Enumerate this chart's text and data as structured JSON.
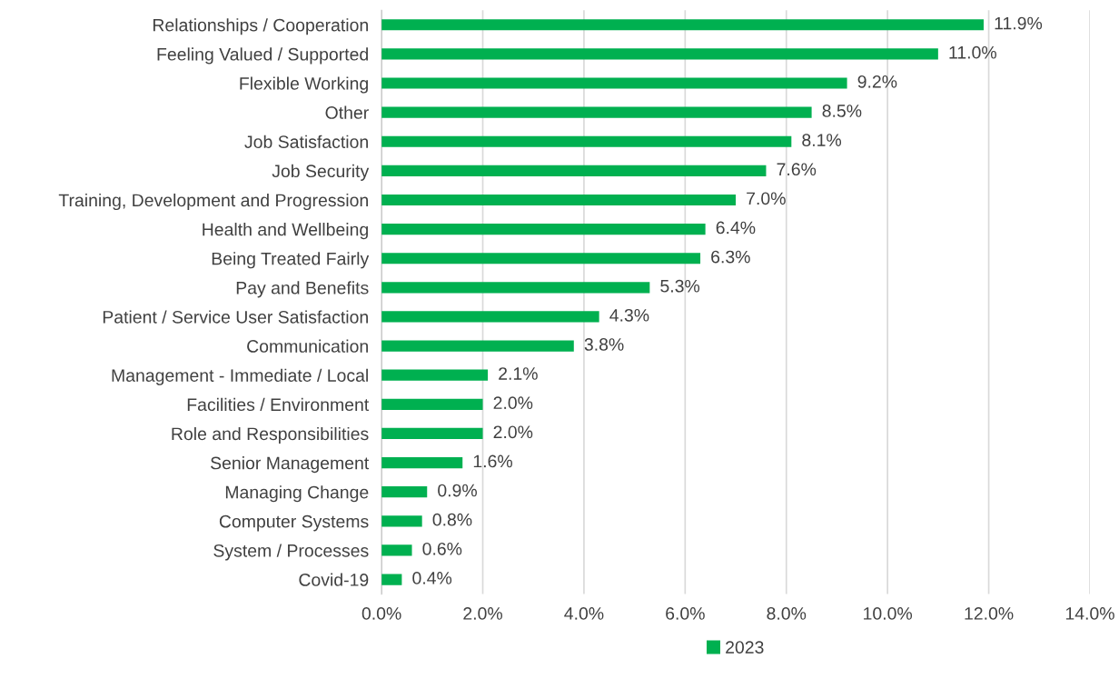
{
  "chart_data": {
    "type": "bar",
    "orientation": "horizontal",
    "categories": [
      "Relationships / Cooperation",
      "Feeling Valued / Supported",
      "Flexible Working",
      "Other",
      "Job Satisfaction",
      "Job Security",
      "Training, Development and Progression",
      "Health and Wellbeing",
      "Being Treated Fairly",
      "Pay and Benefits",
      "Patient / Service User Satisfaction",
      "Communication",
      "Management - Immediate / Local",
      "Facilities / Environment",
      "Role and Responsibilities",
      "Senior Management",
      "Managing Change",
      "Computer Systems",
      "System / Processes",
      "Covid-19"
    ],
    "series": [
      {
        "name": "2023",
        "color": "#00b050",
        "values": [
          11.9,
          11.0,
          9.2,
          8.5,
          8.1,
          7.6,
          7.0,
          6.4,
          6.3,
          5.3,
          4.3,
          3.8,
          2.1,
          2.0,
          2.0,
          1.6,
          0.9,
          0.8,
          0.6,
          0.4
        ],
        "value_labels": [
          "11.9%",
          "11.0%",
          "9.2%",
          "8.5%",
          "8.1%",
          "7.6%",
          "7.0%",
          "6.4%",
          "6.3%",
          "5.3%",
          "4.3%",
          "3.8%",
          "2.1%",
          "2.0%",
          "2.0%",
          "1.6%",
          "0.9%",
          "0.8%",
          "0.6%",
          "0.4%"
        ]
      }
    ],
    "xlim": [
      0,
      14
    ],
    "xticks": [
      {
        "value": 0,
        "label": "0.0%"
      },
      {
        "value": 2,
        "label": "2.0%"
      },
      {
        "value": 4,
        "label": "4.0%"
      },
      {
        "value": 6,
        "label": "6.0%"
      },
      {
        "value": 8,
        "label": "8.0%"
      },
      {
        "value": 10,
        "label": "10.0%"
      },
      {
        "value": 12,
        "label": "12.0%"
      },
      {
        "value": 14,
        "label": "14.0%"
      }
    ],
    "grid": "x",
    "legend": "bottom"
  }
}
